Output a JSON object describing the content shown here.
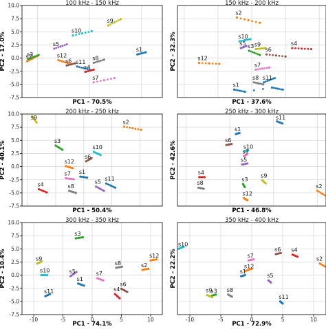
{
  "chart_data": [
    {
      "type": "scatter",
      "title": "100 kHz - 150 kHz",
      "xlabel": "PC1 - 70.5%",
      "ylabel": "PC2 - 17.0%",
      "xlim": [
        -1.5,
        12
      ],
      "ylim": [
        -7.5,
        10
      ],
      "xticks": [],
      "yticks": [
        10.0,
        7.5,
        5.0,
        2.5,
        0.0,
        -2.5,
        -5.0,
        -7.5
      ],
      "grid": true,
      "series": [
        {
          "name": "s1",
          "color": "#1f77b4",
          "x": [
            9.6,
            10.0,
            10.4
          ],
          "y": [
            0.7,
            0.9,
            1.1
          ]
        },
        {
          "name": "s2",
          "color": "#ff7f0e",
          "x": [
            -1.0,
            -0.5,
            0.0
          ],
          "y": [
            -0.6,
            -0.1,
            0.4
          ]
        },
        {
          "name": "s3",
          "color": "#2ca02c",
          "x": [
            -0.9,
            -0.4,
            0.1
          ],
          "y": [
            -0.2,
            0.2,
            0.6
          ]
        },
        {
          "name": "s4",
          "color": "#d62728",
          "x": [
            4.6,
            5.0,
            5.4
          ],
          "y": [
            -2.6,
            -2.4,
            -2.2
          ]
        },
        {
          "name": "s5",
          "color": "#9467bd",
          "x": [
            1.6,
            2.2,
            2.8
          ],
          "y": [
            1.8,
            2.2,
            2.6
          ]
        },
        {
          "name": "s6",
          "color": "#8c564b",
          "x": [
            2.8,
            3.2,
            3.6
          ],
          "y": [
            -1.4,
            -1.2,
            -1.0
          ]
        },
        {
          "name": "s7",
          "color": "#e377c2",
          "x": [
            5.4,
            6.4,
            7.4
          ],
          "y": [
            -4.6,
            -4.2,
            -3.8
          ]
        },
        {
          "name": "s8",
          "color": "#7f7f7f",
          "x": [
            5.4,
            5.9,
            6.4
          ],
          "y": [
            -0.9,
            -0.6,
            -0.3
          ]
        },
        {
          "name": "s9",
          "color": "#bcbd22",
          "x": [
            6.8,
            7.4,
            8.0
          ],
          "y": [
            6.2,
            6.8,
            7.4
          ]
        },
        {
          "name": "s10",
          "color": "#17becf",
          "x": [
            3.4,
            4.3,
            5.2
          ],
          "y": [
            4.3,
            4.7,
            5.1
          ]
        },
        {
          "name": "s11",
          "color": "#1f77b4",
          "x": [
            3.8,
            4.4,
            5.0
          ],
          "y": [
            -1.6,
            -1.9,
            -2.2
          ]
        },
        {
          "name": "s12",
          "color": "#ff7f0e",
          "x": [
            2.0,
            2.5,
            3.0
          ],
          "y": [
            -0.4,
            -0.7,
            -1.0
          ]
        }
      ]
    },
    {
      "type": "scatter",
      "title": "150 kHz - 200 kHz",
      "xlabel": "PC1 - 37.6%",
      "ylabel": "PC2 - 32.3%",
      "xlim": [
        -11,
        11
      ],
      "ylim": [
        -7.5,
        10
      ],
      "xticks": [],
      "yticks": [],
      "grid": true,
      "series": [
        {
          "name": "s1",
          "color": "#1f77b4",
          "x": [
            -2.6,
            -1.8,
            -1.0,
            3.0,
            3.8,
            4.6
          ],
          "y": [
            -6.0,
            -6.2,
            -6.4,
            -5.6,
            -5.8,
            -6.0
          ]
        },
        {
          "name": "s2",
          "color": "#ff7f0e",
          "x": [
            -2.2,
            -0.5,
            1.2
          ],
          "y": [
            7.7,
            7.2,
            6.7
          ]
        },
        {
          "name": "s3",
          "color": "#2ca02c",
          "x": [
            -0.4,
            0.4,
            1.2
          ],
          "y": [
            1.4,
            1.0,
            0.6
          ]
        },
        {
          "name": "s4",
          "color": "#d62728",
          "x": [
            6.0,
            7.4,
            8.8
          ],
          "y": [
            1.9,
            1.8,
            1.7
          ]
        },
        {
          "name": "s5",
          "color": "#9467bd",
          "x": [
            -1.6,
            -1.2,
            -0.8
          ],
          "y": [
            1.9,
            2.1,
            2.3
          ]
        },
        {
          "name": "s6",
          "color": "#8c564b",
          "x": [
            2.2,
            3.6,
            5.0
          ],
          "y": [
            0.7,
            0.5,
            0.3
          ]
        },
        {
          "name": "s7",
          "color": "#e377c2",
          "x": [
            0.6,
            1.6,
            2.6
          ],
          "y": [
            -2.2,
            -2.0,
            -1.8
          ]
        },
        {
          "name": "s8",
          "color": "#7f7f7f",
          "x": [
            0.3,
            1.0,
            1.7
          ],
          "y": [
            -4.6,
            -4.8,
            -5.0
          ]
        },
        {
          "name": "s9",
          "color": "#bcbd22",
          "x": [
            0.6,
            1.3,
            2.0
          ],
          "y": [
            1.7,
            1.8,
            1.9
          ]
        },
        {
          "name": "s10",
          "color": "#17becf",
          "x": [
            -1.8,
            -1.0,
            -0.2
          ],
          "y": [
            3.2,
            3.4,
            3.6
          ]
        },
        {
          "name": "s11",
          "color": "#1f77b4",
          "x": [
            1.8,
            2.6,
            3.4
          ],
          "y": [
            -4.6,
            -4.2,
            -3.8
          ]
        },
        {
          "name": "s12",
          "color": "#ff7f0e",
          "x": [
            -7.8,
            -6.3,
            -4.8
          ],
          "y": [
            -0.9,
            -1.0,
            -1.1
          ]
        }
      ]
    },
    {
      "type": "scatter",
      "title": "200 kHz - 250 kHz",
      "xlabel": "PC1 - 50.4%",
      "ylabel": "PC2 - 40.1%",
      "xlim": [
        -11,
        14
      ],
      "ylim": [
        -7.5,
        10
      ],
      "xticks": [],
      "yticks": [
        10.0,
        7.5,
        5.0,
        2.5,
        0.0,
        -2.5,
        -5.0,
        -7.5
      ],
      "grid": true,
      "series": [
        {
          "name": "s1",
          "color": "#1f77b4",
          "x": [
            -0.6,
            0.0,
            0.6
          ],
          "y": [
            -1.9,
            -2.0,
            -2.1
          ]
        },
        {
          "name": "s2",
          "color": "#ff7f0e",
          "x": [
            7.2,
            8.7,
            10.2
          ],
          "y": [
            7.6,
            7.3,
            7.0
          ]
        },
        {
          "name": "s3",
          "color": "#2ca02c",
          "x": [
            -5.0,
            -4.4,
            -3.8
          ],
          "y": [
            4.0,
            3.6,
            3.2
          ]
        },
        {
          "name": "s4",
          "color": "#d62728",
          "x": [
            -8.0,
            -7.3,
            -6.6
          ],
          "y": [
            -4.3,
            -4.6,
            -4.9
          ]
        },
        {
          "name": "s5",
          "color": "#9467bd",
          "x": [
            2.2,
            2.9,
            3.6
          ],
          "y": [
            -3.8,
            -4.2,
            -4.6
          ]
        },
        {
          "name": "s6",
          "color": "#8c564b",
          "x": [
            0.4,
            0.9,
            1.4
          ],
          "y": [
            1.0,
            1.3,
            1.6
          ]
        },
        {
          "name": "s7",
          "color": "#e377c2",
          "x": [
            -3.2,
            -2.5,
            -1.8
          ],
          "y": [
            -2.2,
            -2.3,
            -2.4
          ]
        },
        {
          "name": "s8",
          "color": "#7f7f7f",
          "x": [
            -2.6,
            -2.0,
            -1.4
          ],
          "y": [
            -4.6,
            -4.8,
            -5.0
          ]
        },
        {
          "name": "s9",
          "color": "#bcbd22",
          "x": [
            -9.2,
            -8.8,
            -8.4
          ],
          "y": [
            9.6,
            9.0,
            8.4
          ]
        },
        {
          "name": "s10",
          "color": "#17becf",
          "x": [
            1.8,
            2.4,
            3.0
          ],
          "y": [
            2.8,
            2.5,
            2.2
          ]
        },
        {
          "name": "s11",
          "color": "#1f77b4",
          "x": [
            4.0,
            4.8,
            5.6
          ],
          "y": [
            -3.2,
            -3.6,
            -4.0
          ]
        },
        {
          "name": "s12",
          "color": "#ff7f0e",
          "x": [
            -3.2,
            -2.6,
            -2.0
          ],
          "y": [
            0.1,
            -0.1,
            -0.3
          ]
        }
      ]
    },
    {
      "type": "scatter",
      "title": "250 kHz - 300 kHz",
      "xlabel": "PC1 - 46.8%",
      "ylabel": "PC2 - 42.6%",
      "xlim": [
        -6,
        11
      ],
      "ylim": [
        -7.5,
        10
      ],
      "xticks": [],
      "yticks": [],
      "grid": true,
      "series": [
        {
          "name": "s1",
          "color": "#1f77b4",
          "x": [
            0.7,
            0.9,
            1.1
          ],
          "y": [
            6.2,
            6.3,
            6.4
          ]
        },
        {
          "name": "s2",
          "color": "#ff7f0e",
          "x": [
            10.0,
            10.6,
            11.2
          ],
          "y": [
            -4.6,
            -5.2,
            -5.8
          ]
        },
        {
          "name": "s3",
          "color": "#2ca02c",
          "x": [
            1.5,
            1.6,
            1.7
          ],
          "y": [
            -3.3,
            -3.6,
            -3.9
          ]
        },
        {
          "name": "s4",
          "color": "#d62728",
          "x": [
            -3.5,
            -3.2,
            -2.9
          ],
          "y": [
            -2.0,
            -2.0,
            -2.0
          ]
        },
        {
          "name": "s5",
          "color": "#9467bd",
          "x": [
            1.4,
            1.7,
            2.0
          ],
          "y": [
            0.4,
            0.5,
            0.6
          ]
        },
        {
          "name": "s6",
          "color": "#8c564b",
          "x": [
            -0.4,
            -0.1,
            0.2
          ],
          "y": [
            4.1,
            4.2,
            4.3
          ]
        },
        {
          "name": "s7",
          "color": "#e377c2",
          "x": [
            1.6,
            1.8,
            2.0
          ],
          "y": [
            2.0,
            2.2,
            2.4
          ]
        },
        {
          "name": "s8",
          "color": "#7f7f7f",
          "x": [
            -3.6,
            -3.3,
            -3.0
          ],
          "y": [
            -4.0,
            -4.1,
            -4.2
          ]
        },
        {
          "name": "s9",
          "color": "#bcbd22",
          "x": [
            3.7,
            3.9,
            4.1
          ],
          "y": [
            -2.6,
            -2.9,
            -3.2
          ]
        },
        {
          "name": "s10",
          "color": "#17becf",
          "x": [
            1.7,
            1.9,
            2.1
          ],
          "y": [
            2.9,
            3.0,
            3.1
          ]
        },
        {
          "name": "s11",
          "color": "#1f77b4",
          "x": [
            5.4,
            5.7,
            6.0
          ],
          "y": [
            8.6,
            8.4,
            8.2
          ]
        },
        {
          "name": "s12",
          "color": "#ff7f0e",
          "x": [
            1.6,
            1.8,
            2.0
          ],
          "y": [
            -6.0,
            -6.2,
            -6.4
          ]
        }
      ]
    },
    {
      "type": "scatter",
      "title": "300 kHz - 350 kHz",
      "xlabel": "PC1 - 74.1%",
      "ylabel": "PC2 - 10.4%",
      "xlim": [
        -12,
        12
      ],
      "ylim": [
        -7.5,
        10
      ],
      "xticks": [
        -10,
        -5,
        0,
        5,
        10
      ],
      "yticks": [
        10.0,
        7.5,
        5.0,
        2.5,
        0.0,
        -2.5,
        -5.0,
        -7.5
      ],
      "grid": true,
      "series": [
        {
          "name": "s1",
          "color": "#1f77b4",
          "x": [
            -2.4,
            -1.9,
            -1.4
          ],
          "y": [
            -1.6,
            -1.8,
            -2.0
          ]
        },
        {
          "name": "s2",
          "color": "#ff7f0e",
          "x": [
            8.6,
            9.1,
            9.6
          ],
          "y": [
            1.0,
            1.1,
            1.2
          ]
        },
        {
          "name": "s3",
          "color": "#2ca02c",
          "x": [
            -2.8,
            -2.2,
            -1.6
          ],
          "y": [
            7.0,
            7.1,
            7.2
          ]
        },
        {
          "name": "s4",
          "color": "#d62728",
          "x": [
            3.9,
            4.3,
            4.7
          ],
          "y": [
            -3.6,
            -4.0,
            -4.4
          ]
        },
        {
          "name": "s5",
          "color": "#9467bd",
          "x": [
            -3.7,
            -3.2,
            -2.7
          ],
          "y": [
            -0.2,
            0.2,
            0.6
          ]
        },
        {
          "name": "s6",
          "color": "#8c564b",
          "x": [
            5.0,
            5.5,
            6.0
          ],
          "y": [
            -2.6,
            -2.9,
            -3.2
          ]
        },
        {
          "name": "s7",
          "color": "#e377c2",
          "x": [
            0.9,
            1.4,
            1.9
          ],
          "y": [
            -0.6,
            -0.8,
            -1.0
          ]
        },
        {
          "name": "s8",
          "color": "#7f7f7f",
          "x": [
            4.1,
            4.6,
            5.1
          ],
          "y": [
            1.4,
            1.5,
            1.6
          ]
        },
        {
          "name": "s9",
          "color": "#bcbd22",
          "x": [
            -9.4,
            -9.0,
            -8.6
          ],
          "y": [
            2.2,
            2.4,
            2.6
          ]
        },
        {
          "name": "s10",
          "color": "#17becf",
          "x": [
            -8.7,
            -8.2,
            -7.7
          ],
          "y": [
            0.0,
            0.0,
            0.0
          ]
        },
        {
          "name": "s11",
          "color": "#1f77b4",
          "x": [
            -8.0,
            -7.6,
            -7.2
          ],
          "y": [
            -4.0,
            -3.8,
            -3.6
          ]
        },
        {
          "name": "s12",
          "color": "#ff7f0e",
          "x": [
            10.0,
            10.5,
            11.0
          ],
          "y": [
            2.8,
            2.9,
            3.0
          ]
        }
      ]
    },
    {
      "type": "scatter",
      "title": "350 kHz - 400 kHz",
      "xlabel": "PC1 - 72.9%",
      "ylabel": "PC2 - 22.2%",
      "xlim": [
        -12,
        12
      ],
      "ylim": [
        -7.5,
        10
      ],
      "xticks": [
        -10,
        -5,
        0,
        5,
        10
      ],
      "yticks": [],
      "grid": true,
      "series": [
        {
          "name": "s1",
          "color": "#1f77b4",
          "x": [
            -1.7,
            -1.4,
            -1.1
          ],
          "y": [
            -0.2,
            -0.1,
            0.0
          ]
        },
        {
          "name": "s2",
          "color": "#ff7f0e",
          "x": [
            11.0,
            11.6,
            12.2
          ],
          "y": [
            2.2,
            1.8,
            1.4
          ]
        },
        {
          "name": "s3",
          "color": "#2ca02c",
          "x": [
            -6.4,
            -6.1,
            -5.8
          ],
          "y": [
            -3.9,
            -3.8,
            -3.7
          ]
        },
        {
          "name": "s4",
          "color": "#d62728",
          "x": [
            6.6,
            7.0,
            7.4
          ],
          "y": [
            3.9,
            3.7,
            3.5
          ]
        },
        {
          "name": "s5",
          "color": "#9467bd",
          "x": [
            2.7,
            2.9,
            3.1
          ],
          "y": [
            -1.0,
            -1.2,
            -1.4
          ]
        },
        {
          "name": "s6",
          "color": "#8c564b",
          "x": [
            3.9,
            4.3,
            4.7
          ],
          "y": [
            4.0,
            4.1,
            4.2
          ]
        },
        {
          "name": "s7",
          "color": "#e377c2",
          "x": [
            -0.5,
            -0.1,
            0.3
          ],
          "y": [
            2.8,
            2.9,
            3.0
          ]
        },
        {
          "name": "s8",
          "color": "#7f7f7f",
          "x": [
            -3.8,
            -3.5,
            -3.2
          ],
          "y": [
            -3.7,
            -3.9,
            -4.1
          ]
        },
        {
          "name": "s9",
          "color": "#bcbd22",
          "x": [
            -7.2,
            -6.8,
            -6.4
          ],
          "y": [
            -3.8,
            -4.0,
            -4.2
          ]
        },
        {
          "name": "s10",
          "color": "#17becf",
          "x": [
            -11.8,
            -11.4,
            -11.0
          ],
          "y": [
            5.0,
            5.2,
            5.4
          ]
        },
        {
          "name": "s11",
          "color": "#1f77b4",
          "x": [
            4.6,
            4.8,
            5.0
          ],
          "y": [
            -5.0,
            -5.2,
            -5.4
          ]
        },
        {
          "name": "s12",
          "color": "#ff7f0e",
          "x": [
            -1.0,
            -0.5,
            0.0
          ],
          "y": [
            0.8,
            1.0,
            1.2
          ]
        }
      ]
    }
  ]
}
